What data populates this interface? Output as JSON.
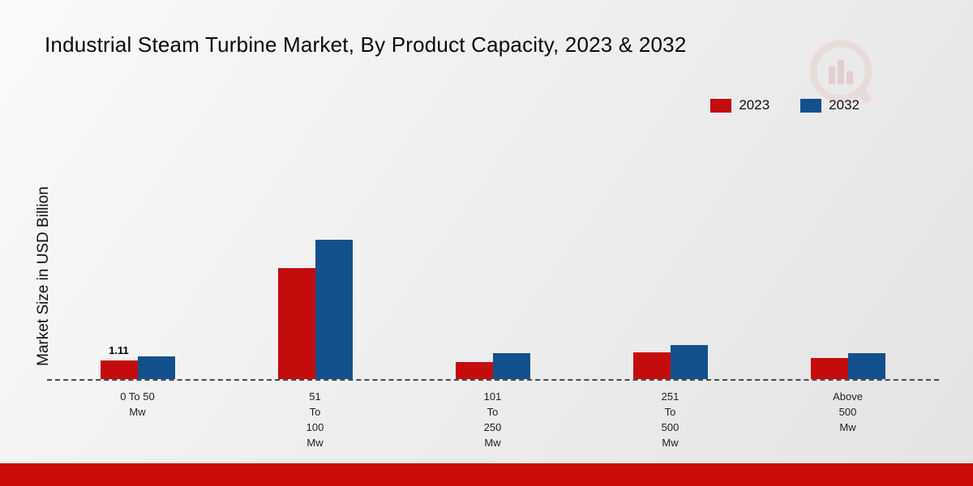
{
  "chart": {
    "title": "Industrial Steam Turbine Market, By Product Capacity, 2023 & 2032",
    "ylabel": "Market Size in USD Billion"
  },
  "chart_data": {
    "type": "bar",
    "title": "Industrial Steam Turbine Market, By Product Capacity, 2023 & 2032",
    "xlabel": "",
    "ylabel": "Market Size in USD Billion",
    "categories": [
      "0 To 50 Mw",
      "51 To 100 Mw",
      "101 To 250 Mw",
      "251 To 500 Mw",
      "Above 500 Mw"
    ],
    "category_label_lines": [
      [
        "0 To 50 Mw"
      ],
      [
        "51",
        "To",
        "100",
        "Mw"
      ],
      [
        "101",
        "To",
        "250",
        "Mw"
      ],
      [
        "251",
        "To",
        "500",
        "Mw"
      ],
      [
        "Above",
        "500",
        "Mw"
      ]
    ],
    "series": [
      {
        "name": "2023",
        "color": "#c30d0d",
        "values": [
          1.11,
          6.5,
          1.0,
          1.55,
          1.25
        ]
      },
      {
        "name": "2032",
        "color": "#13508e",
        "values": [
          1.35,
          8.2,
          1.5,
          2.0,
          1.5
        ]
      }
    ],
    "annotations": [
      {
        "series": "2023",
        "category_index": 0,
        "text": "1.11"
      }
    ],
    "ylim": [
      0,
      9
    ],
    "grid": false,
    "legend_position": "top-right",
    "baseline_style": "dashed"
  },
  "watermark": {
    "name": "market-research-logo-watermark",
    "circle_color": "#e9c9c9",
    "bar_color": "#dcaeae"
  },
  "footer": {
    "accent_color": "#cc0b0b"
  }
}
